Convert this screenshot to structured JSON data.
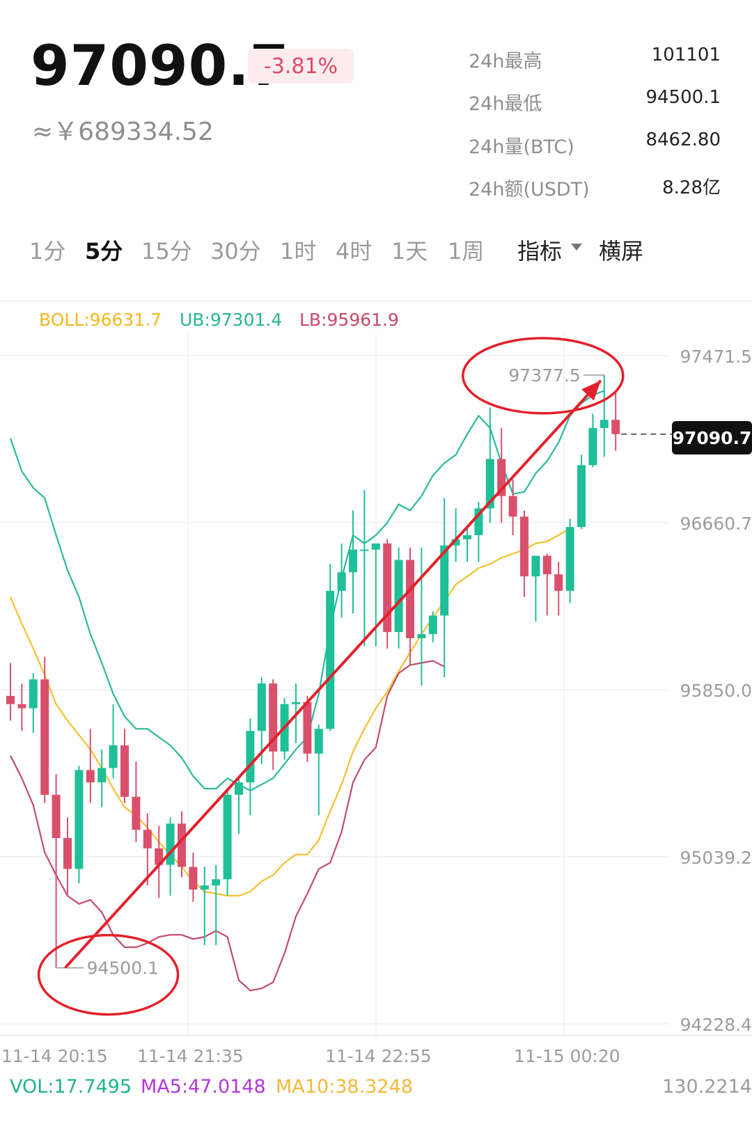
{
  "header": {
    "price": "97090.7",
    "change": "-3.81%",
    "cny_price": "≈￥689334.52"
  },
  "stats": [
    {
      "label": "24h最高",
      "value": "101101"
    },
    {
      "label": "24h最低",
      "value": "94500.1"
    },
    {
      "label": "24h量(BTC)",
      "value": "8462.80"
    },
    {
      "label": "24h额(USDT)",
      "value": "8.28亿"
    }
  ],
  "timeframes": [
    "1分",
    "5分",
    "15分",
    "30分",
    "1时",
    "4时",
    "1天",
    "1周"
  ],
  "active_timeframe": "5分",
  "toolbar": {
    "indicator_label": "指标",
    "landscape_label": "横屏"
  },
  "indicators": {
    "boll": "BOLL:96631.7",
    "ub": "UB:97301.4",
    "lb": "LB:95961.9"
  },
  "price_axis": [
    "97471.5",
    "96660.7",
    "95850.0",
    "95039.2",
    "94228.4"
  ],
  "time_axis": [
    "11-14 20:15",
    "11-14 21:35",
    "11-14 22:55",
    "11-15 00:20"
  ],
  "annotations": {
    "high_marker": "97377.5",
    "low_marker": "94500.1",
    "last_price": "97090.7"
  },
  "volume": {
    "vol": "VOL:17.7495",
    "ma5": "MA5:47.0148",
    "ma10": "MA10:38.3248",
    "axis_max": "130.2214"
  },
  "colors": {
    "up": "#1fbf98",
    "down": "#d9506d",
    "boll_mid": "#f3c12f",
    "boll_upper": "#2ab99a",
    "boll_lower": "#c24b6b",
    "annotation": "#e3202a",
    "ma5": "#b236d8",
    "ma10": "#f3b93a"
  },
  "chart_data": {
    "type": "candlestick",
    "ylim": [
      94228.4,
      97471.5
    ],
    "candles": [
      {
        "o": 95820,
        "h": 95980,
        "l": 95700,
        "c": 95780
      },
      {
        "o": 95780,
        "h": 95880,
        "l": 95650,
        "c": 95760
      },
      {
        "o": 95760,
        "h": 95930,
        "l": 95640,
        "c": 95900
      },
      {
        "o": 95900,
        "h": 96010,
        "l": 95300,
        "c": 95340
      },
      {
        "o": 95340,
        "h": 95440,
        "l": 94500.1,
        "c": 95130
      },
      {
        "o": 95130,
        "h": 95230,
        "l": 94850,
        "c": 94980
      },
      {
        "o": 94980,
        "h": 95480,
        "l": 94910,
        "c": 95460
      },
      {
        "o": 95460,
        "h": 95660,
        "l": 95300,
        "c": 95400
      },
      {
        "o": 95400,
        "h": 95560,
        "l": 95280,
        "c": 95470
      },
      {
        "o": 95470,
        "h": 95780,
        "l": 95420,
        "c": 95580
      },
      {
        "o": 95580,
        "h": 95660,
        "l": 95300,
        "c": 95330
      },
      {
        "o": 95330,
        "h": 95500,
        "l": 95110,
        "c": 95170
      },
      {
        "o": 95170,
        "h": 95250,
        "l": 94900,
        "c": 95080
      },
      {
        "o": 95080,
        "h": 95190,
        "l": 94840,
        "c": 95000
      },
      {
        "o": 95000,
        "h": 95230,
        "l": 94850,
        "c": 95200
      },
      {
        "o": 95200,
        "h": 95260,
        "l": 94940,
        "c": 94990
      },
      {
        "o": 94990,
        "h": 95060,
        "l": 94820,
        "c": 94880
      },
      {
        "o": 94880,
        "h": 94990,
        "l": 94610,
        "c": 94900
      },
      {
        "o": 94900,
        "h": 95000,
        "l": 94610,
        "c": 94930
      },
      {
        "o": 94930,
        "h": 95360,
        "l": 94850,
        "c": 95340
      },
      {
        "o": 95340,
        "h": 95420,
        "l": 95150,
        "c": 95400
      },
      {
        "o": 95400,
        "h": 95710,
        "l": 95240,
        "c": 95650
      },
      {
        "o": 95650,
        "h": 95910,
        "l": 95490,
        "c": 95880
      },
      {
        "o": 95880,
        "h": 95900,
        "l": 95460,
        "c": 95550
      },
      {
        "o": 95550,
        "h": 95810,
        "l": 95510,
        "c": 95780
      },
      {
        "o": 95780,
        "h": 95880,
        "l": 95590,
        "c": 95790
      },
      {
        "o": 95790,
        "h": 95820,
        "l": 95500,
        "c": 95540
      },
      {
        "o": 95540,
        "h": 95680,
        "l": 95240,
        "c": 95660
      },
      {
        "o": 95660,
        "h": 96460,
        "l": 95650,
        "c": 96330
      },
      {
        "o": 96330,
        "h": 96560,
        "l": 96200,
        "c": 96420
      },
      {
        "o": 96420,
        "h": 96720,
        "l": 96220,
        "c": 96530
      },
      {
        "o": 96530,
        "h": 96820,
        "l": 96060,
        "c": 96530
      },
      {
        "o": 96530,
        "h": 96550,
        "l": 96060,
        "c": 96560
      },
      {
        "o": 96560,
        "h": 96580,
        "l": 96050,
        "c": 96130
      },
      {
        "o": 96130,
        "h": 96540,
        "l": 96050,
        "c": 96480
      },
      {
        "o": 96480,
        "h": 96540,
        "l": 95970,
        "c": 96100
      },
      {
        "o": 96100,
        "h": 96540,
        "l": 95870,
        "c": 96120
      },
      {
        "o": 96120,
        "h": 96230,
        "l": 96080,
        "c": 96210
      },
      {
        "o": 96210,
        "h": 96780,
        "l": 95910,
        "c": 96550
      },
      {
        "o": 96550,
        "h": 96730,
        "l": 96470,
        "c": 96580
      },
      {
        "o": 96580,
        "h": 96640,
        "l": 96470,
        "c": 96600
      },
      {
        "o": 96600,
        "h": 96760,
        "l": 96470,
        "c": 96730
      },
      {
        "o": 96730,
        "h": 97220,
        "l": 96660,
        "c": 96970
      },
      {
        "o": 96970,
        "h": 97120,
        "l": 96660,
        "c": 96790
      },
      {
        "o": 96790,
        "h": 96870,
        "l": 96600,
        "c": 96690
      },
      {
        "o": 96690,
        "h": 96720,
        "l": 96300,
        "c": 96400
      },
      {
        "o": 96400,
        "h": 96500,
        "l": 96180,
        "c": 96500
      },
      {
        "o": 96500,
        "h": 96510,
        "l": 96210,
        "c": 96410
      },
      {
        "o": 96410,
        "h": 96470,
        "l": 96210,
        "c": 96330
      },
      {
        "o": 96330,
        "h": 96680,
        "l": 96270,
        "c": 96640
      },
      {
        "o": 96640,
        "h": 96990,
        "l": 96630,
        "c": 96940
      },
      {
        "o": 96940,
        "h": 97190,
        "l": 96930,
        "c": 97120
      },
      {
        "o": 97120,
        "h": 97377.5,
        "l": 96980,
        "c": 97160
      },
      {
        "o": 97160,
        "h": 97300,
        "l": 97010,
        "c": 97090.7
      }
    ],
    "boll_upper": [
      97070,
      96910,
      96830,
      96780,
      96600,
      96430,
      96300,
      96120,
      95980,
      95830,
      95720,
      95660,
      95660,
      95620,
      95580,
      95520,
      95430,
      95370,
      95370,
      95420,
      95390,
      95360,
      95390,
      95420,
      95490,
      95560,
      95620,
      95830,
      96150,
      96390,
      96600,
      96560,
      96600,
      96660,
      96750,
      96720,
      96790,
      96890,
      96950,
      96990,
      97090,
      97180,
      97120,
      96950,
      96800,
      96810,
      96900,
      96960,
      97050,
      97180,
      97240,
      97280,
      97301.4
    ],
    "boll_mid": [
      96300,
      96170,
      96050,
      95920,
      95780,
      95700,
      95630,
      95560,
      95470,
      95370,
      95280,
      95240,
      95180,
      95110,
      95050,
      94990,
      94920,
      94870,
      94860,
      94850,
      94850,
      94870,
      94920,
      94950,
      95010,
      95050,
      95050,
      95120,
      95260,
      95390,
      95550,
      95660,
      95760,
      95840,
      95940,
      96030,
      96120,
      96200,
      96280,
      96360,
      96400,
      96440,
      96460,
      96490,
      96510,
      96530,
      96560,
      96570,
      96600,
      96631.7
    ],
    "boll_lower": [
      95530,
      95420,
      95290,
      95060,
      94950,
      94850,
      94810,
      94830,
      94770,
      94660,
      94600,
      94600,
      94620,
      94650,
      94660,
      94660,
      94640,
      94650,
      94680,
      94650,
      94440,
      94390,
      94400,
      94430,
      94570,
      94750,
      94860,
      94980,
      95010,
      95160,
      95400,
      95510,
      95570,
      95820,
      95930,
      95970,
      95980,
      95990,
      95961.9
    ]
  }
}
